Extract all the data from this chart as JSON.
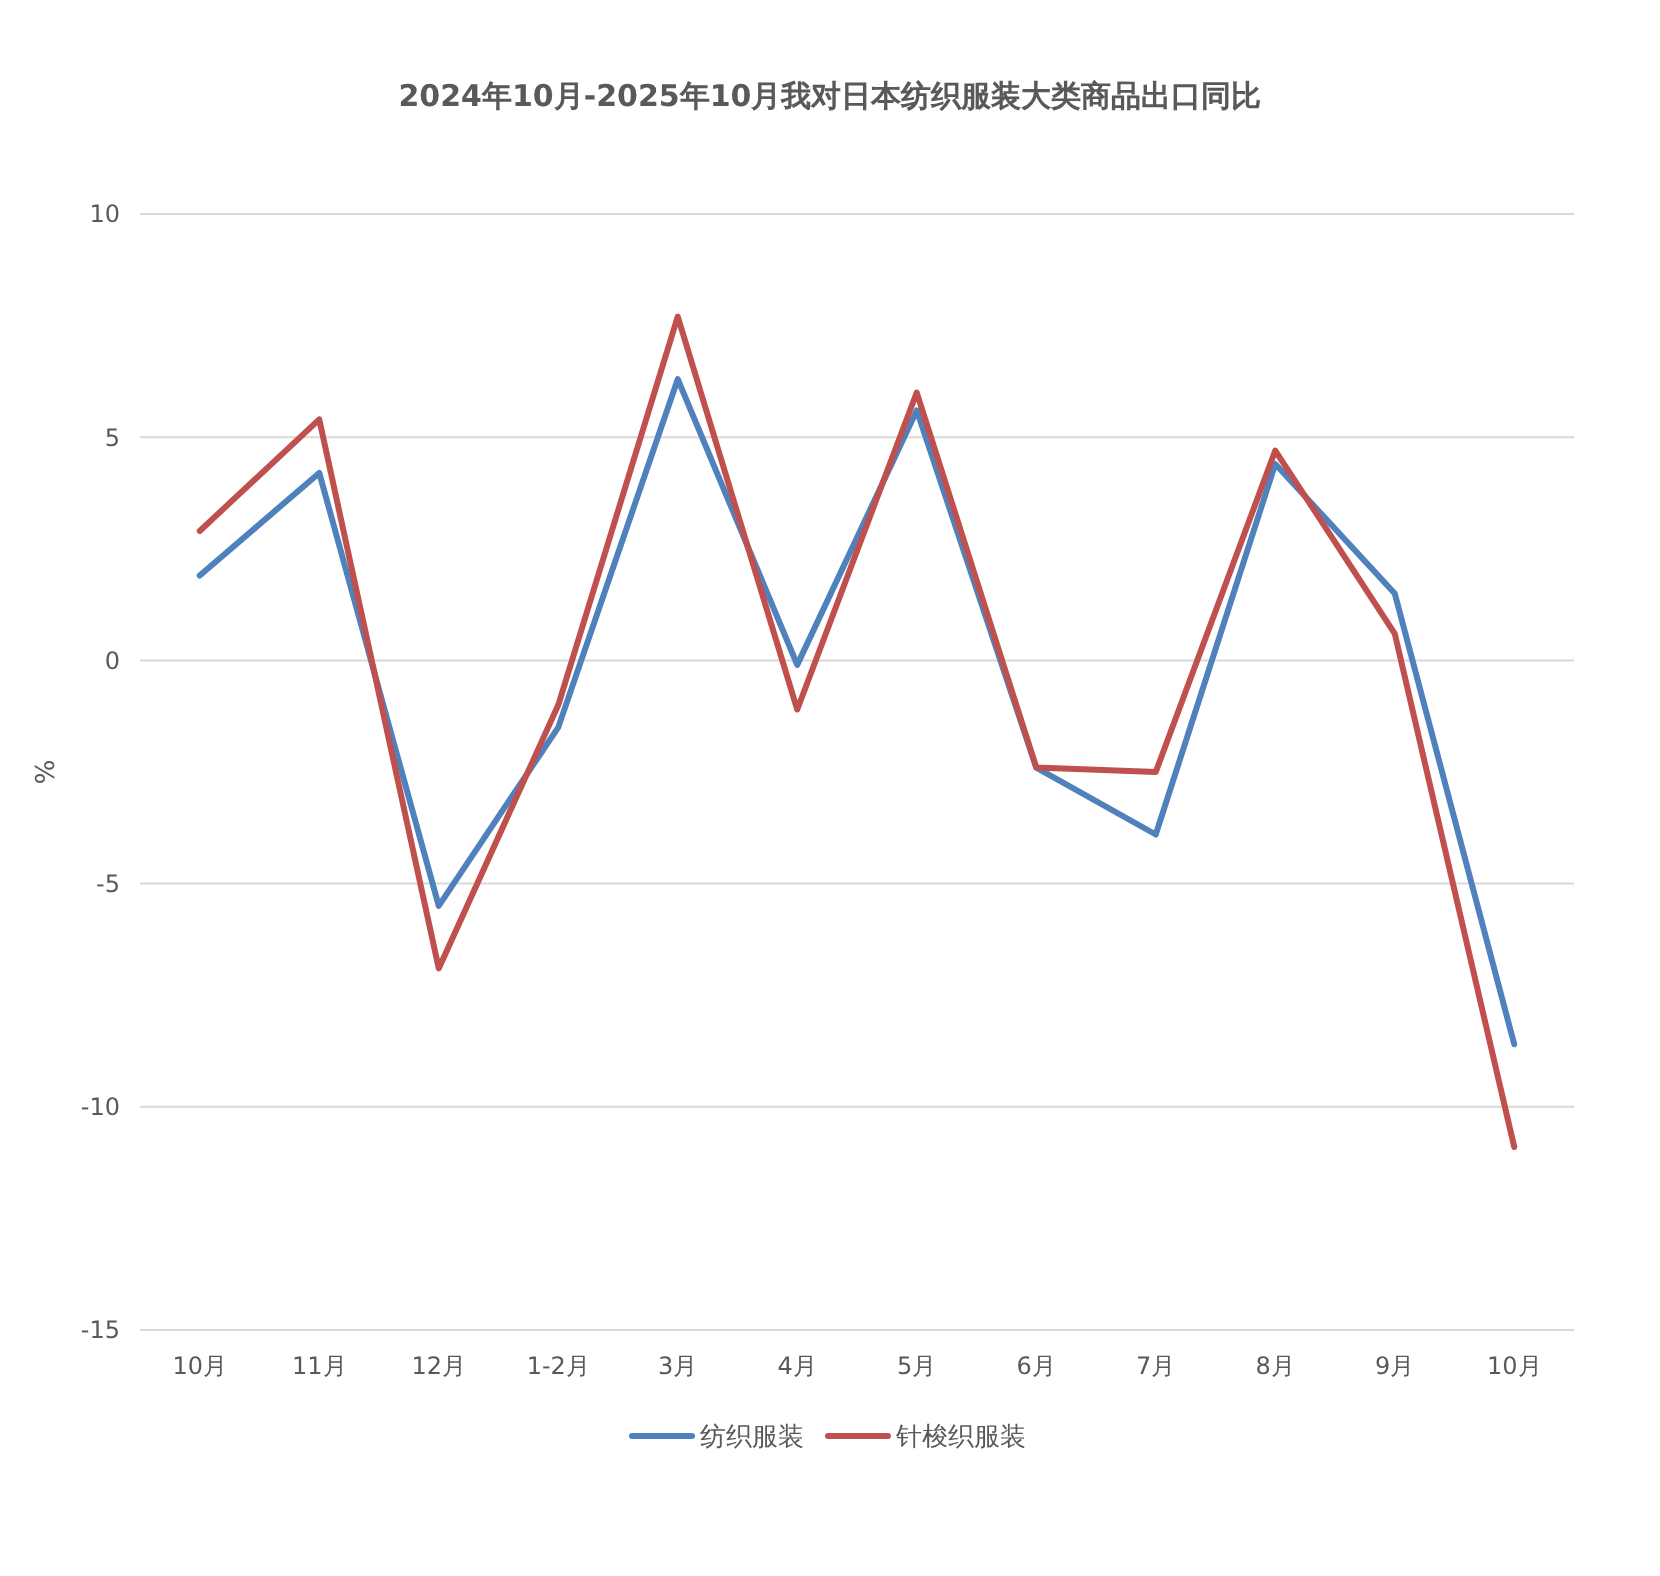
{
  "chart_data": {
    "type": "line",
    "title": "2024年10月-2025年10月我对日本纺织服装大类商品出口同比",
    "ylabel": "%",
    "categories": [
      "10月",
      "11月",
      "12月",
      "1-2月",
      "3月",
      "4月",
      "5月",
      "6月",
      "7月",
      "8月",
      "9月",
      "10月"
    ],
    "series": [
      {
        "name": "纺织服装",
        "color": "#4f81bd",
        "values": [
          1.9,
          4.2,
          -5.5,
          -1.5,
          6.3,
          -0.1,
          5.6,
          -2.4,
          -3.9,
          4.4,
          1.5,
          -8.6
        ]
      },
      {
        "name": "针梭织服装",
        "color": "#c0504d",
        "values": [
          2.9,
          5.4,
          -6.9,
          -1.0,
          7.7,
          -1.1,
          6.0,
          -2.4,
          -2.5,
          4.7,
          0.6,
          -10.9
        ]
      }
    ],
    "ylim": [
      -15,
      10
    ],
    "yticks": [
      -15,
      -10,
      -5,
      0,
      5,
      10
    ],
    "grid": "y",
    "legend": "bottom"
  }
}
